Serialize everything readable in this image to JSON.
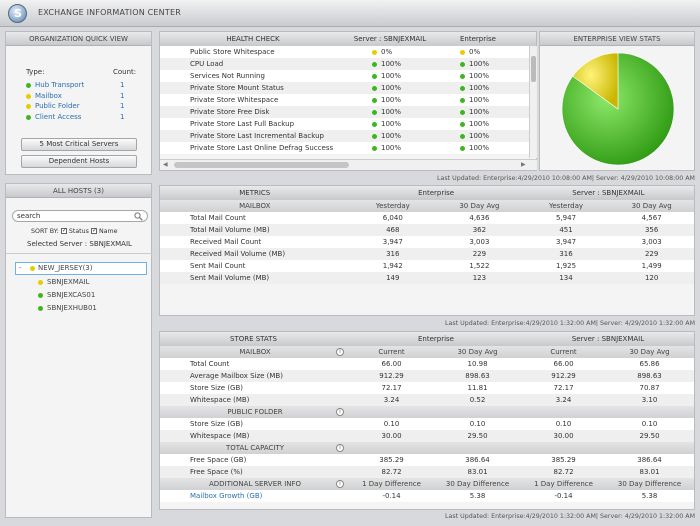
{
  "app": {
    "title": "EXCHANGE INFORMATION CENTER",
    "logo_glyph": "S"
  },
  "quick_view": {
    "title": "ORGANIZATION QUICK VIEW",
    "type_header": "Type:",
    "count_header": "Count:",
    "items": [
      {
        "label": "Hub Transport",
        "count": "1",
        "color": "green"
      },
      {
        "label": "Mailbox",
        "count": "1",
        "color": "yellow"
      },
      {
        "label": "Public Folder",
        "count": "1",
        "color": "yellow"
      },
      {
        "label": "Client Access",
        "count": "1",
        "color": "green"
      }
    ],
    "critical_button": "5 Most Critical Servers",
    "dependent_button": "Dependent Hosts"
  },
  "all_hosts": {
    "title": "ALL HOSTS (3)",
    "search_value": "search",
    "sort_by_label": "SORT BY:",
    "sort_status_label": "Status",
    "sort_name_label": "Name",
    "selected_server": "Selected Server : SBNJEXMAIL",
    "group_toggle": "-",
    "group_name": "NEW_JERSEY(3)",
    "hosts": [
      {
        "name": "SBNJEXMAIL",
        "color": "yellow"
      },
      {
        "name": "SBNJEXCAS01",
        "color": "green"
      },
      {
        "name": "SBNJEXHUB01",
        "color": "green"
      }
    ]
  },
  "health": {
    "title": "HEALTH CHECK",
    "server_header": "Server : SBNJEXMAIL",
    "enterprise_header": "Enterprise",
    "rows": [
      {
        "label": "Public Store Whitespace",
        "server": "0%",
        "server_color": "yellow",
        "enterprise": "0%",
        "enterprise_color": "yellow"
      },
      {
        "label": "CPU Load",
        "server": "100%",
        "server_color": "green",
        "enterprise": "100%",
        "enterprise_color": "green"
      },
      {
        "label": "Services Not Running",
        "server": "100%",
        "server_color": "green",
        "enterprise": "100%",
        "enterprise_color": "green"
      },
      {
        "label": "Private Store Mount Status",
        "server": "100%",
        "server_color": "green",
        "enterprise": "100%",
        "enterprise_color": "green"
      },
      {
        "label": "Private Store Whitespace",
        "server": "100%",
        "server_color": "green",
        "enterprise": "100%",
        "enterprise_color": "green"
      },
      {
        "label": "Private Store Free Disk",
        "server": "100%",
        "server_color": "green",
        "enterprise": "100%",
        "enterprise_color": "green"
      },
      {
        "label": "Private Store Last Full Backup",
        "server": "100%",
        "server_color": "green",
        "enterprise": "100%",
        "enterprise_color": "green"
      },
      {
        "label": "Private Store Last Incremental Backup",
        "server": "100%",
        "server_color": "green",
        "enterprise": "100%",
        "enterprise_color": "green"
      },
      {
        "label": "Private Store Last Online Defrag Success",
        "server": "100%",
        "server_color": "green",
        "enterprise": "100%",
        "enterprise_color": "green"
      }
    ]
  },
  "enterprise_stats": {
    "title": "ENTERPRISE VIEW STATS",
    "pie_green_fraction": 0.85,
    "pie_yellow_fraction": 0.15,
    "colors": {
      "green": "#3fb520",
      "yellow": "#e6d400"
    }
  },
  "updated_1": "Last Updated: Enterprise:4/29/2010 10:08:00 AM| Server: 4/29/2010 10:08:00 AM",
  "metrics": {
    "title": "METRICS",
    "enterprise_header": "Enterprise",
    "server_header": "Server : SBNJEXMAIL",
    "sub_label": "MAILBOX",
    "col_yesterday": "Yesterday",
    "col_30day": "30 Day Avg",
    "rows": [
      {
        "label": "Total Mail Count",
        "e_y": "6,040",
        "e_30": "4,636",
        "s_y": "5,947",
        "s_30": "4,567"
      },
      {
        "label": "Total Mail Volume (MB)",
        "e_y": "468",
        "e_30": "362",
        "s_y": "451",
        "s_30": "356"
      },
      {
        "label": "Received Mail Count",
        "e_y": "3,947",
        "e_30": "3,003",
        "s_y": "3,947",
        "s_30": "3,003"
      },
      {
        "label": "Received Mail Volume (MB)",
        "e_y": "316",
        "e_30": "229",
        "s_y": "316",
        "s_30": "229"
      },
      {
        "label": "Sent Mail Count",
        "e_y": "1,942",
        "e_30": "1,522",
        "s_y": "1,925",
        "s_30": "1,499"
      },
      {
        "label": "Sent Mail Volume (MB)",
        "e_y": "149",
        "e_30": "123",
        "s_y": "134",
        "s_30": "120"
      }
    ]
  },
  "updated_2": "Last Updated: Enterprise:4/29/2010 1:32:00 AM| Server: 4/29/2010 1:32:00 AM",
  "store": {
    "title": "STORE STATS",
    "enterprise_header": "Enterprise",
    "server_header": "Server : SBNJEXMAIL",
    "col_current": "Current",
    "col_30day": "30 Day Avg",
    "col_1day_diff": "1 Day Difference",
    "col_30day_diff": "30 Day Difference",
    "mailbox_label": "MAILBOX",
    "mailbox_rows": [
      {
        "label": "Total Count",
        "a": "66.00",
        "b": "10.98",
        "c": "66.00",
        "d": "65.86"
      },
      {
        "label": "Average Mailbox Size (MB)",
        "a": "912.29",
        "b": "898.63",
        "c": "912.29",
        "d": "898.63"
      },
      {
        "label": "Store Size (GB)",
        "a": "72.17",
        "b": "11.81",
        "c": "72.17",
        "d": "70.87"
      },
      {
        "label": "Whitespace (MB)",
        "a": "3.24",
        "b": "0.52",
        "c": "3.24",
        "d": "3.10"
      }
    ],
    "public_label": "PUBLIC FOLDER",
    "public_rows": [
      {
        "label": "Store Size (GB)",
        "a": "0.10",
        "b": "0.10",
        "c": "0.10",
        "d": "0.10"
      },
      {
        "label": "Whitespace (MB)",
        "a": "30.00",
        "b": "29.50",
        "c": "30.00",
        "d": "29.50"
      }
    ],
    "capacity_label": "TOTAL CAPACITY",
    "capacity_rows": [
      {
        "label": "Free Space (GB)",
        "a": "385.29",
        "b": "386.64",
        "c": "385.29",
        "d": "386.64"
      },
      {
        "label": "Free Space (%)",
        "a": "82.72",
        "b": "83.01",
        "c": "82.72",
        "d": "83.01"
      }
    ],
    "additional_label": "ADDITIONAL SERVER INFO",
    "additional_rows": [
      {
        "label": "Mailbox Growth (GB)",
        "a": "-0.14",
        "b": "5.38",
        "c": "-0.14",
        "d": "5.38"
      }
    ]
  },
  "updated_3": "Last Updated: Enterprise:4/29/2010 1:32:00 AM| Server: 4/29/2010 1:32:00 AM"
}
